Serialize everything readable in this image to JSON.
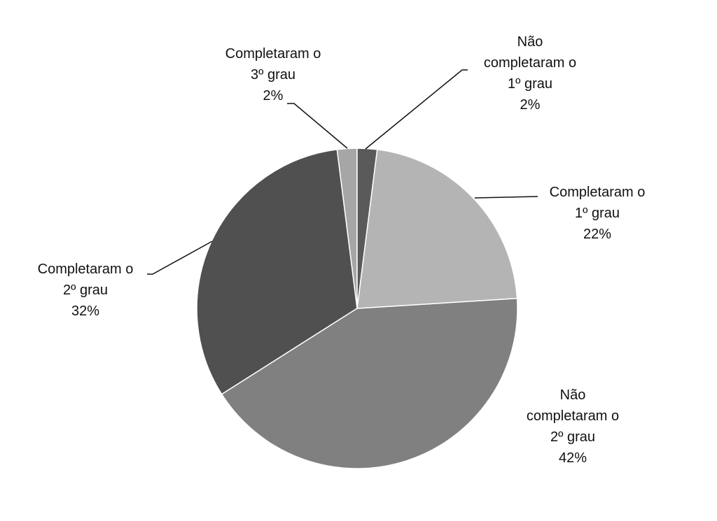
{
  "chart_data": {
    "type": "pie",
    "categories": [
      "Não completaram o 1º grau",
      "Completaram o 1º grau",
      "Não completaram o 2º grau",
      "Completaram o 2º grau",
      "Completaram o 3º grau"
    ],
    "values": [
      2,
      22,
      42,
      32,
      2
    ],
    "value_labels": [
      "2%",
      "22%",
      "42%",
      "32%",
      "2%"
    ],
    "colors": [
      "#5a5a5a",
      "#b4b4b4",
      "#808080",
      "#505050",
      "#a6a6a6"
    ]
  }
}
